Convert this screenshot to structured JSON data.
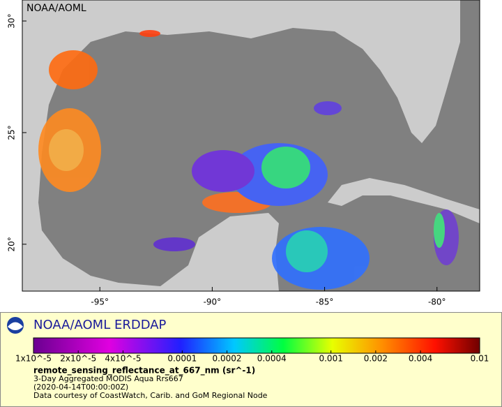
{
  "map": {
    "label": "NOAA/AOML",
    "xlim": [
      -98.45,
      -78.1
    ],
    "ylim": [
      17.9,
      30.94
    ],
    "xticks": [
      {
        "value": -95,
        "label": "-95°"
      },
      {
        "value": -90,
        "label": "-90°"
      },
      {
        "value": -85,
        "label": "-85°"
      },
      {
        "value": -80,
        "label": "-80°"
      }
    ],
    "yticks": [
      {
        "value": 20,
        "label": "20°"
      },
      {
        "value": 25,
        "label": "25°"
      },
      {
        "value": 30,
        "label": "30°"
      }
    ]
  },
  "legend": {
    "title": "NOAA/AOML ERDDAP",
    "log_scale": true,
    "clim": [
      1e-05,
      0.01
    ],
    "ticks": [
      {
        "value": 1e-05,
        "label": "1x10^-5"
      },
      {
        "value": 2e-05,
        "label": "2x10^-5"
      },
      {
        "value": 4e-05,
        "label": "4x10^-5"
      },
      0.0001,
      0.0002,
      0.0004,
      0.001,
      0.002,
      0.004,
      0.01
    ],
    "variable": "remote_sensing_reflectance_at_667_nm (sr^-1)",
    "lines": [
      "3-Day Aggregated MODIS Aqua Rrs667",
      "(2020-04-14T00:00:00Z)",
      "Data courtesy of CoastWatch, Carib. and GoM Regional Node"
    ]
  }
}
